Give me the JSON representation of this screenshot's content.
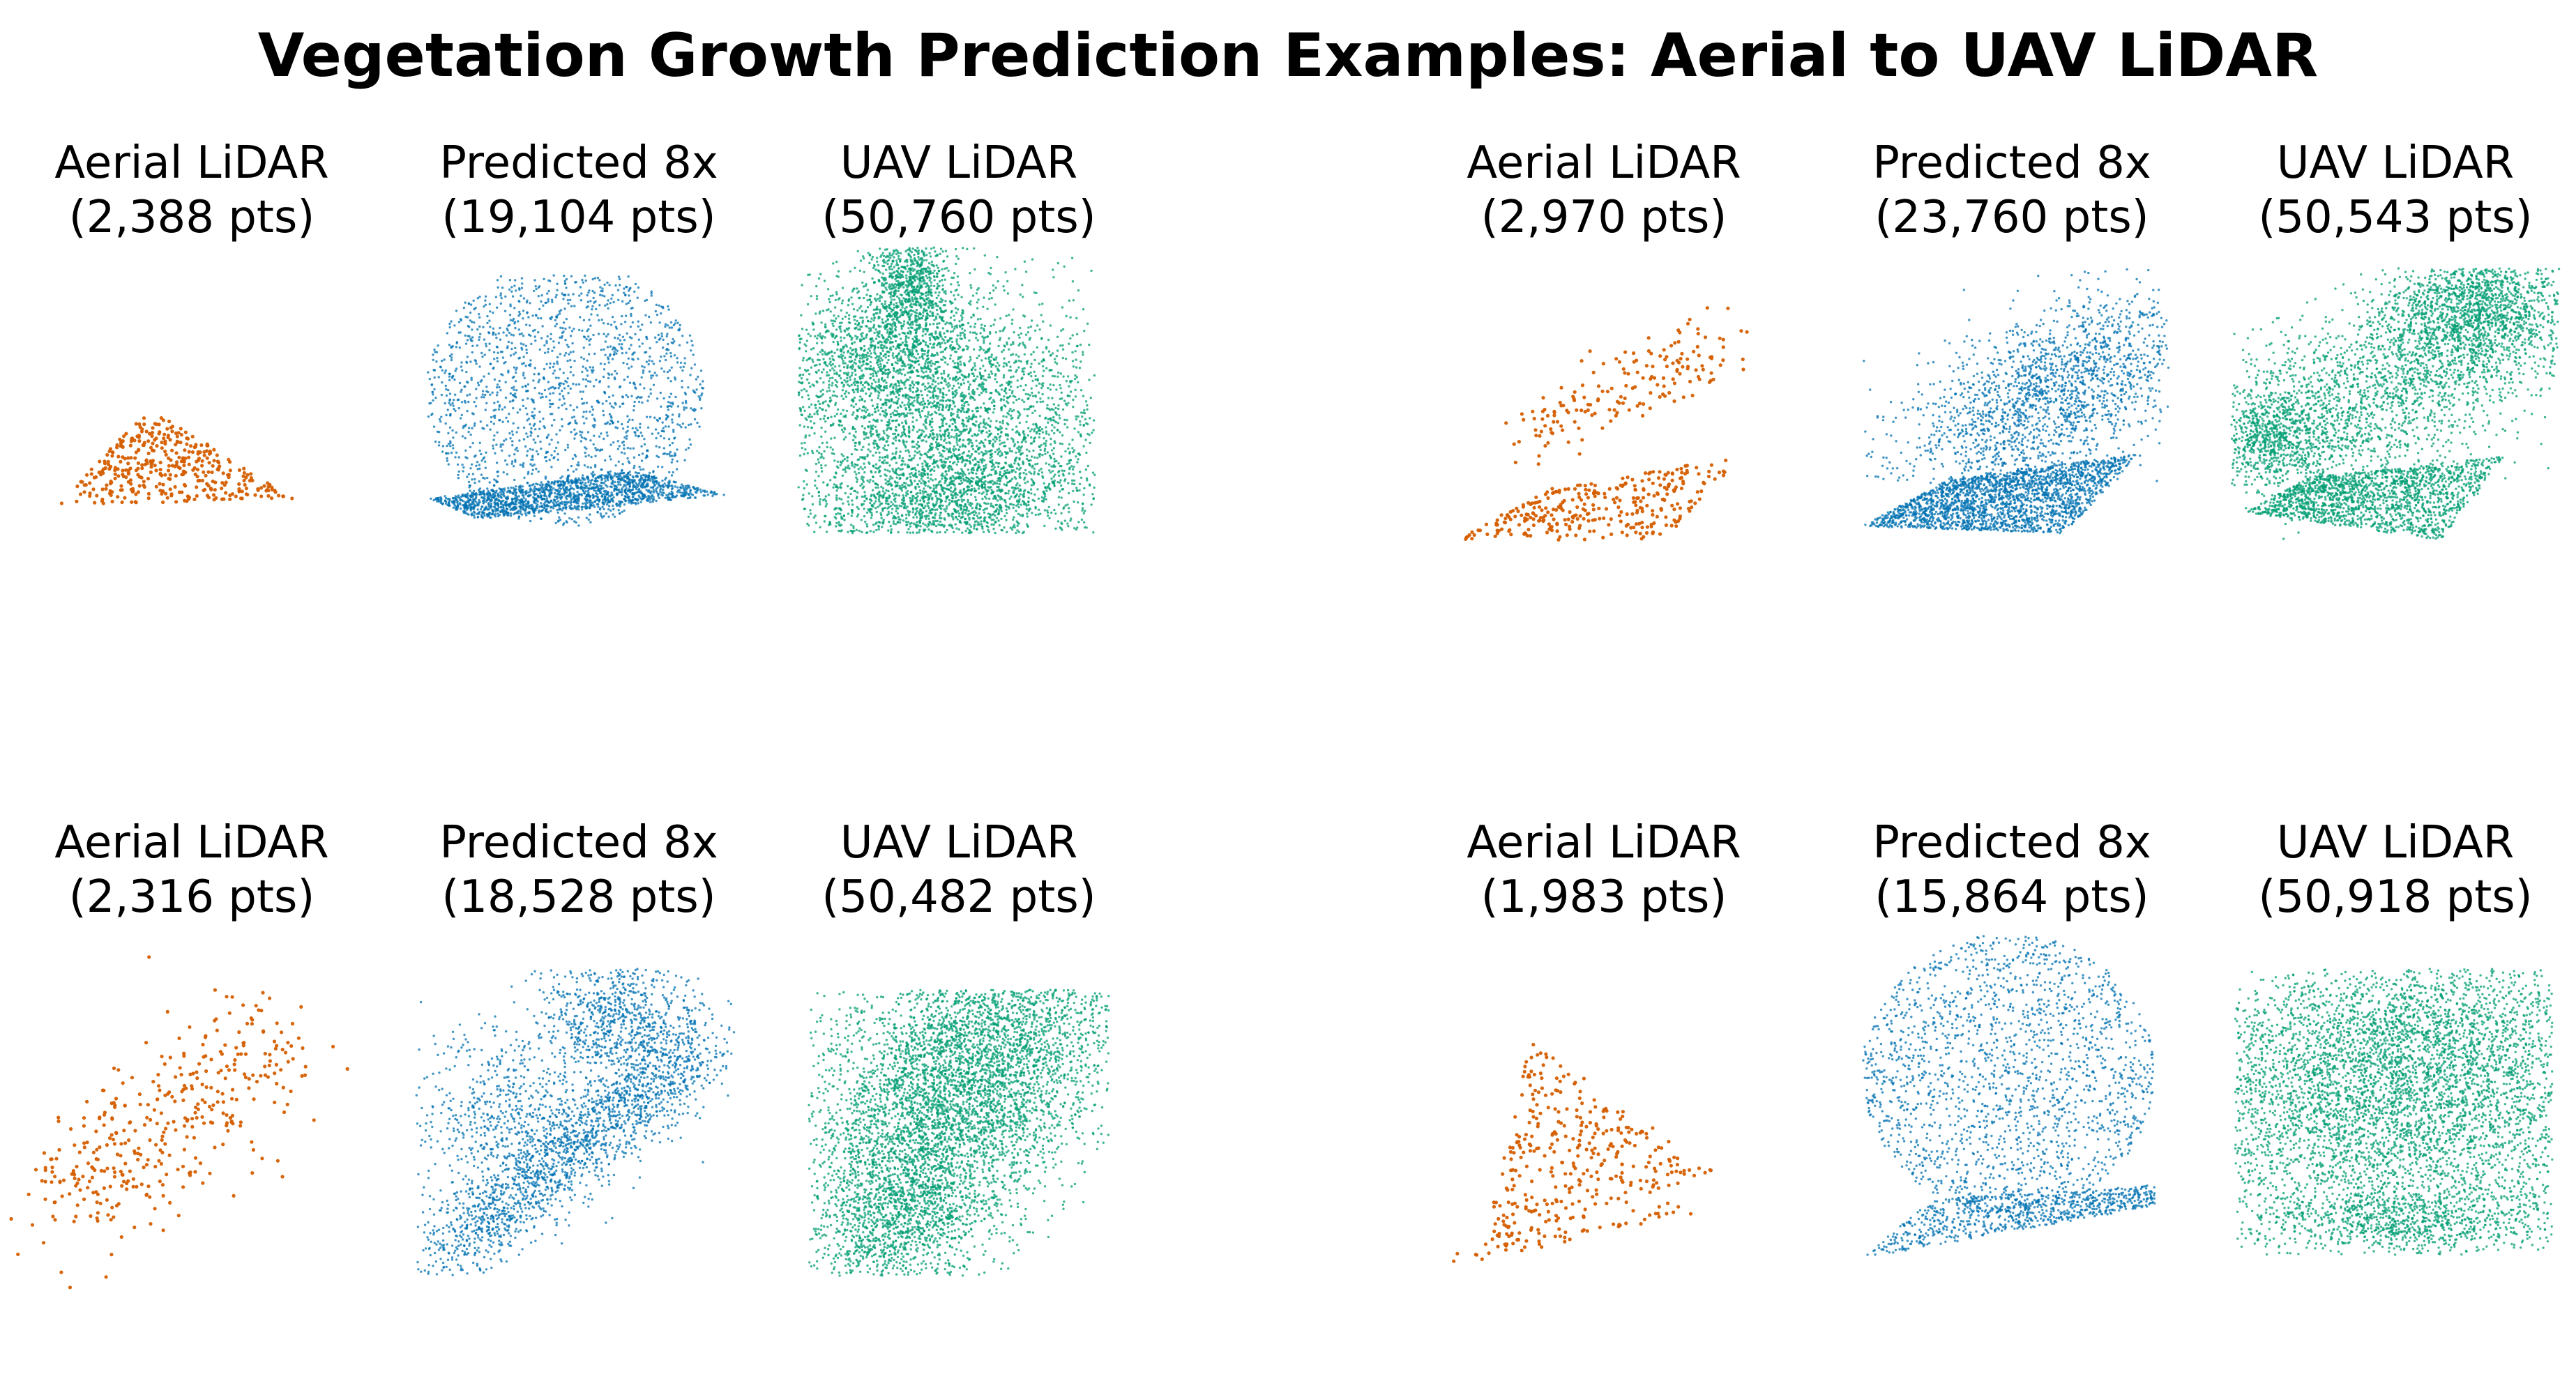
{
  "title": "Vegetation Growth Prediction Examples: Aerial to UAV LiDAR",
  "colors": {
    "aerial": "#d55e00",
    "predicted": "#0072b2",
    "uav": "#009e73"
  },
  "chart_data": [
    {
      "type": "scatter",
      "title": "Aerial LiDAR",
      "subtitle": "(2,388 pts)",
      "point_count": 2388,
      "shape": "triangle",
      "series": "aerial",
      "color": "#d55e00",
      "example": 1
    },
    {
      "type": "scatter",
      "title": "Predicted 8x",
      "subtitle": "(19,104 pts)",
      "point_count": 19104,
      "shape": "cloud-over-ground",
      "series": "predicted",
      "color": "#0072b2",
      "example": 1
    },
    {
      "type": "scatter",
      "title": "UAV LiDAR",
      "subtitle": "(50,760 pts)",
      "point_count": 50760,
      "shape": "dense-tree",
      "series": "uav",
      "color": "#009e73",
      "example": 1
    },
    {
      "type": "scatter",
      "title": "Aerial LiDAR",
      "subtitle": "(2,970 pts)",
      "point_count": 2970,
      "shape": "diagonal",
      "series": "aerial",
      "color": "#d55e00",
      "example": 2
    },
    {
      "type": "scatter",
      "title": "Predicted 8x",
      "subtitle": "(23,760 pts)",
      "point_count": 23760,
      "shape": "blob-over-slab",
      "series": "predicted",
      "color": "#0072b2",
      "example": 2
    },
    {
      "type": "scatter",
      "title": "UAV LiDAR",
      "subtitle": "(50,543 pts)",
      "point_count": 50543,
      "shape": "canopy-over-slab",
      "series": "uav",
      "color": "#009e73",
      "example": 2
    },
    {
      "type": "scatter",
      "title": "Aerial LiDAR",
      "subtitle": "(2,316 pts)",
      "point_count": 2316,
      "shape": "diagonal-sparse",
      "series": "aerial",
      "color": "#d55e00",
      "example": 3
    },
    {
      "type": "scatter",
      "title": "Predicted 8x",
      "subtitle": "(18,528 pts)",
      "point_count": 18528,
      "shape": "diagonal-band",
      "series": "predicted",
      "color": "#0072b2",
      "example": 3
    },
    {
      "type": "scatter",
      "title": "UAV LiDAR",
      "subtitle": "(50,482 pts)",
      "point_count": 50482,
      "shape": "tilted-mass",
      "series": "uav",
      "color": "#009e73",
      "example": 3
    },
    {
      "type": "scatter",
      "title": "Aerial LiDAR",
      "subtitle": "(1,983 pts)",
      "point_count": 1983,
      "shape": "wedge",
      "series": "aerial",
      "color": "#d55e00",
      "example": 4
    },
    {
      "type": "scatter",
      "title": "Predicted 8x",
      "subtitle": "(15,864 pts)",
      "point_count": 15864,
      "shape": "tall-cloud",
      "series": "predicted",
      "color": "#0072b2",
      "example": 4
    },
    {
      "type": "scatter",
      "title": "UAV LiDAR",
      "subtitle": "(50,918 pts)",
      "point_count": 50918,
      "shape": "wide-mass",
      "series": "uav",
      "color": "#009e73",
      "example": 4
    }
  ]
}
